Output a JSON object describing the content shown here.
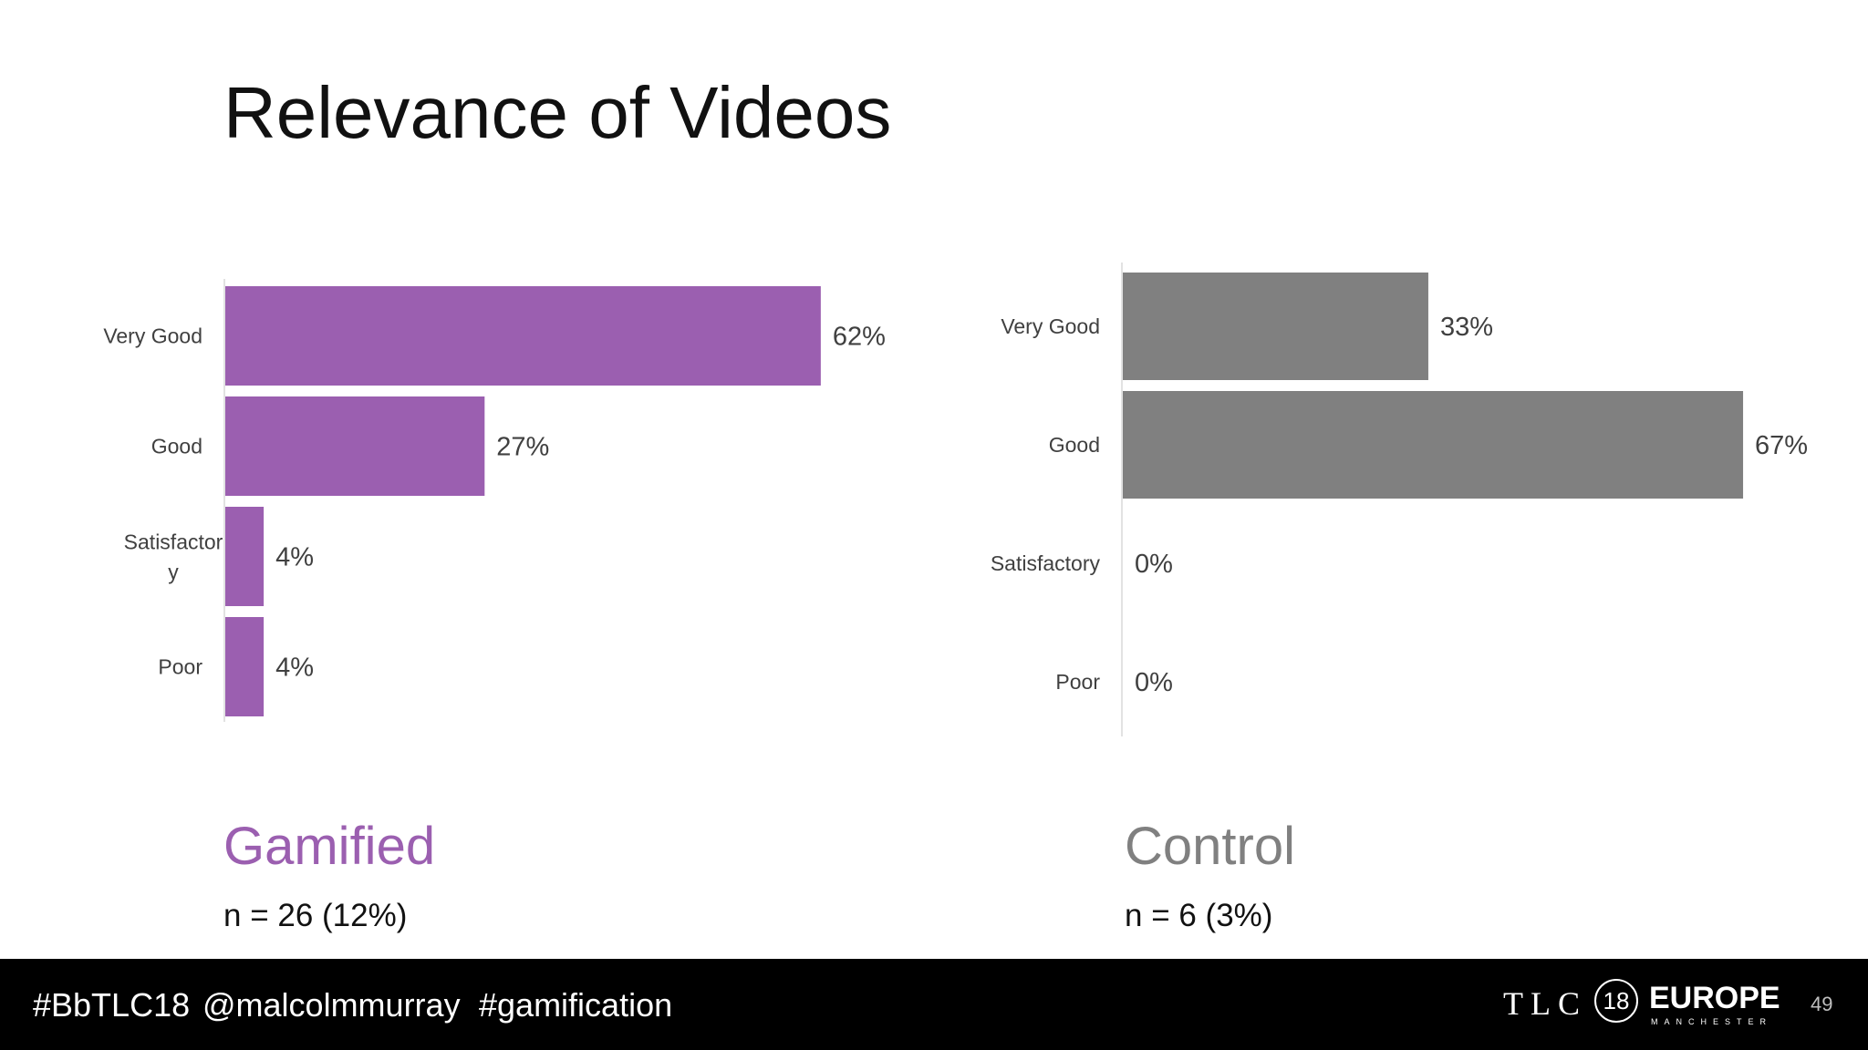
{
  "slide": {
    "title": "Relevance of Videos",
    "page_number": "49"
  },
  "colors": {
    "gamified": "#9b5fb0",
    "control": "#808080",
    "footer_bg": "#000000"
  },
  "groups": {
    "gamified": {
      "name": "Gamified",
      "n_label": "n = 26 (12%)"
    },
    "control": {
      "name": "Control",
      "n_label": "n = 6 (3%)"
    }
  },
  "footer": {
    "hashtags": [
      "#BbTLC18",
      "@malcolmmurray",
      "#gamification"
    ],
    "logo": {
      "tlc": "TLC",
      "year": "18",
      "region": "EUROPE",
      "city": "MANCHESTER"
    }
  },
  "chart_data": [
    {
      "type": "bar",
      "orientation": "horizontal",
      "categories": [
        "Very Good",
        "Good",
        "Satisfactor\ny",
        "Poor"
      ],
      "values": [
        62,
        27,
        4,
        4
      ],
      "value_labels": [
        "62%",
        "27%",
        "4%",
        "4%"
      ],
      "unit": "%",
      "xlim": [
        0,
        100
      ],
      "grid": false,
      "legend": "none",
      "color": "#9b5fb0"
    },
    {
      "type": "bar",
      "orientation": "horizontal",
      "categories": [
        "Very Good",
        "Good",
        "Satisfactory",
        "Poor"
      ],
      "values": [
        33,
        67,
        0,
        0
      ],
      "value_labels": [
        "33%",
        "67%",
        "0%",
        "0%"
      ],
      "unit": "%",
      "xlim": [
        0,
        100
      ],
      "grid": false,
      "legend": "none",
      "color": "#808080"
    }
  ]
}
